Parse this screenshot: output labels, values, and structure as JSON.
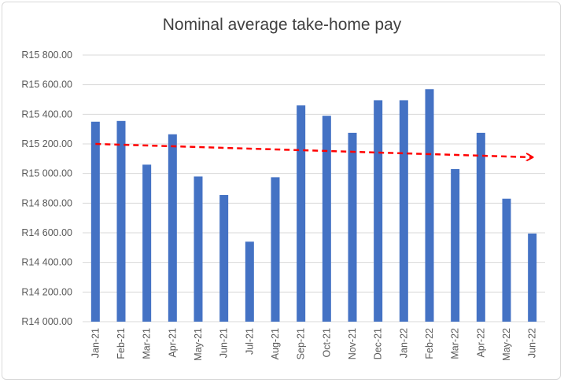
{
  "chart_data": {
    "type": "bar",
    "title": "Nominal average take-home pay",
    "xlabel": "",
    "ylabel": "",
    "categories": [
      "Jan-21",
      "Feb-21",
      "Mar-21",
      "Apr-21",
      "May-21",
      "Jun-21",
      "Jul-21",
      "Aug-21",
      "Sep-21",
      "Oct-21",
      "Nov-21",
      "Dec-21",
      "Jan-22",
      "Feb-22",
      "Mar-22",
      "Apr-22",
      "May-22",
      "Jun-22"
    ],
    "series": [
      {
        "values": [
          15350,
          15355,
          15060,
          15265,
          14980,
          14855,
          14540,
          14975,
          15460,
          15390,
          15275,
          15495,
          15495,
          15570,
          15030,
          15275,
          14830,
          14595
        ],
        "color": "#4472c4"
      }
    ],
    "trendline": {
      "style": "dashed arrow",
      "color": "#ff0000",
      "start": 15200,
      "end": 15110
    },
    "ylim": [
      14000,
      15800
    ],
    "yticks": [
      "R14 000.00",
      "R14 200.00",
      "R14 400.00",
      "R14 600.00",
      "R14 800.00",
      "R15 000.00",
      "R15 200.00",
      "R15 400.00",
      "R15 600.00",
      "R15 800.00"
    ],
    "grid": true,
    "legend": "none"
  }
}
